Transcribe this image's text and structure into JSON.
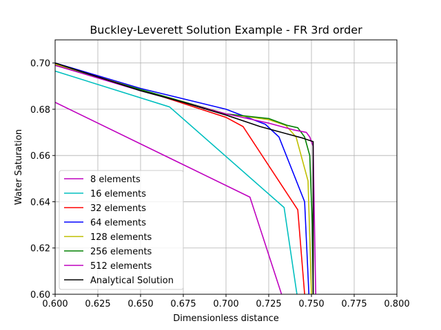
{
  "chart_data": {
    "type": "line",
    "title": "Buckley-Leverett Solution Example - FR 3rd order",
    "xlabel": "Dimensionless distance",
    "ylabel": "Water Saturation",
    "xlim": [
      0.6,
      0.8
    ],
    "ylim": [
      0.6,
      0.71
    ],
    "xticks": [
      "0.600",
      "0.625",
      "0.650",
      "0.675",
      "0.700",
      "0.725",
      "0.750",
      "0.775",
      "0.800"
    ],
    "yticks": [
      "0.60",
      "0.62",
      "0.64",
      "0.66",
      "0.68",
      "0.70"
    ],
    "grid": true,
    "legend_position": "lower-left",
    "series": [
      {
        "name": "8 elements",
        "color": "#bf00bf",
        "x": [
          0.6,
          0.714,
          0.7325
        ],
        "y": [
          0.683,
          0.642,
          0.6
        ]
      },
      {
        "name": "16 elements",
        "color": "#00bfbf",
        "x": [
          0.6,
          0.667,
          0.734,
          0.7415
        ],
        "y": [
          0.6965,
          0.681,
          0.6375,
          0.6
        ]
      },
      {
        "name": "32 elements",
        "color": "#ff0000",
        "x": [
          0.6,
          0.625,
          0.65,
          0.675,
          0.7,
          0.71,
          0.742,
          0.746
        ],
        "y": [
          0.6995,
          0.6945,
          0.6885,
          0.6825,
          0.6765,
          0.6725,
          0.6365,
          0.6
        ]
      },
      {
        "name": "64 elements",
        "color": "#0000ff",
        "x": [
          0.6,
          0.65,
          0.7,
          0.723,
          0.731,
          0.746,
          0.7485
        ],
        "y": [
          0.7,
          0.689,
          0.68,
          0.6735,
          0.668,
          0.64,
          0.6
        ]
      },
      {
        "name": "128 elements",
        "color": "#bfbf00",
        "x": [
          0.6,
          0.65,
          0.7,
          0.725,
          0.735,
          0.741,
          0.748,
          0.75
        ],
        "y": [
          0.6995,
          0.6885,
          0.678,
          0.6755,
          0.673,
          0.668,
          0.649,
          0.6
        ]
      },
      {
        "name": "256 elements",
        "color": "#008000",
        "x": [
          0.6,
          0.65,
          0.7,
          0.725,
          0.736,
          0.742,
          0.746,
          0.749,
          0.7505,
          0.751
        ],
        "y": [
          0.699,
          0.6885,
          0.678,
          0.676,
          0.673,
          0.672,
          0.668,
          0.66,
          0.63,
          0.6
        ]
      },
      {
        "name": "512 elements",
        "color": "#bf00bf",
        "x": [
          0.6,
          0.65,
          0.7,
          0.725,
          0.74,
          0.747,
          0.749,
          0.751,
          0.752,
          0.7525
        ],
        "y": [
          0.699,
          0.688,
          0.678,
          0.674,
          0.671,
          0.67,
          0.668,
          0.664,
          0.62,
          0.6
        ]
      },
      {
        "name": "Analytical Solution",
        "color": "#000000",
        "x": [
          0.6,
          0.625,
          0.65,
          0.675,
          0.7,
          0.72,
          0.735,
          0.745,
          0.751,
          0.751
        ],
        "y": [
          0.7,
          0.694,
          0.688,
          0.683,
          0.6775,
          0.6725,
          0.6695,
          0.6675,
          0.666,
          0.6
        ]
      }
    ]
  }
}
